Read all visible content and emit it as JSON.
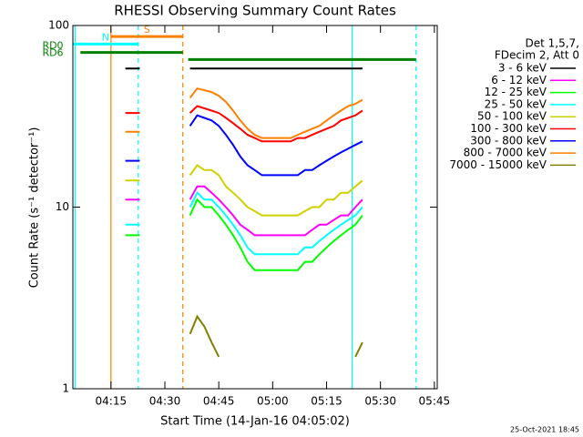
{
  "chart_data": {
    "type": "line",
    "title": "RHESSI Observing Summary Count Rates",
    "x_label": "Start Time (14-Jan-16 04:05:02)",
    "y_label": "Count Rate (s⁻¹ detector⁻¹)",
    "legend_header": [
      "Det 1,5,7,",
      "FDecim 2, Att 0"
    ],
    "footer": "25-Oct-2021 18:45",
    "log_y": true,
    "xlim": [
      4.4,
      105.8
    ],
    "xticks": [
      {
        "value": 15,
        "label": "04:15"
      },
      {
        "value": 30,
        "label": "04:30"
      },
      {
        "value": 45,
        "label": "04:45"
      },
      {
        "value": 60,
        "label": "05:00"
      },
      {
        "value": 75,
        "label": "05:15"
      },
      {
        "value": 90,
        "label": "05:30"
      },
      {
        "value": 105,
        "label": "05:45"
      }
    ],
    "ylim": [
      1,
      100
    ],
    "yticks": [
      1,
      10,
      100
    ],
    "x": [
      19,
      20,
      21,
      22,
      23,
      30,
      37,
      39,
      41,
      43,
      45,
      47,
      49,
      51,
      53,
      55,
      57,
      59,
      61,
      63,
      65,
      67,
      69,
      71,
      73,
      75,
      77,
      79,
      81,
      83,
      85
    ],
    "series": [
      {
        "name": "3 - 6 keV",
        "color": "#000000",
        "values": [
          58,
          58,
          58,
          58,
          58,
          null,
          58,
          58,
          58,
          58,
          58,
          58,
          58,
          58,
          58,
          58,
          58,
          58,
          58,
          58,
          58,
          58,
          58,
          58,
          58,
          58,
          58,
          58,
          58,
          58,
          58
        ]
      },
      {
        "name": "6 - 12 keV",
        "color": "#ff00ff",
        "values": [
          11,
          11,
          11,
          11,
          11,
          null,
          11,
          13,
          13,
          12,
          11,
          10,
          9,
          8,
          7.5,
          7,
          7,
          7,
          7,
          7,
          7,
          7,
          7,
          7.5,
          8,
          8,
          8.5,
          9,
          9,
          10,
          11
        ]
      },
      {
        "name": "12 - 25 keV",
        "color": "#00ff00",
        "values": [
          7,
          7,
          7,
          7,
          7,
          null,
          9,
          11,
          10,
          10,
          9,
          8,
          7,
          6,
          5,
          4.5,
          4.5,
          4.5,
          4.5,
          4.5,
          4.5,
          4.5,
          5,
          5,
          5.5,
          6,
          6.5,
          7,
          7.5,
          8,
          9
        ]
      },
      {
        "name": "25 - 50 keV",
        "color": "#00ffff",
        "values": [
          8,
          8,
          8,
          8,
          8,
          null,
          10,
          12,
          11,
          11,
          10,
          9,
          8,
          7,
          6,
          5.5,
          5.5,
          5.5,
          5.5,
          5.5,
          5.5,
          5.5,
          6,
          6,
          6.5,
          7,
          7.5,
          8,
          8.5,
          9,
          10
        ]
      },
      {
        "name": "50 - 100 keV",
        "color": "#d0d000",
        "values": [
          14,
          14,
          14,
          14,
          14,
          null,
          15,
          17,
          16,
          16,
          15,
          13,
          12,
          11,
          10,
          9.5,
          9,
          9,
          9,
          9,
          9,
          9,
          9.5,
          10,
          10,
          11,
          11,
          12,
          12,
          13,
          14
        ]
      },
      {
        "name": "100 - 300 keV",
        "color": "#ff0000",
        "values": [
          33,
          33,
          33,
          33,
          33,
          null,
          33,
          36,
          35,
          34,
          33,
          31,
          29,
          27,
          25,
          24,
          23,
          23,
          23,
          23,
          23,
          24,
          24,
          25,
          26,
          27,
          28,
          30,
          31,
          32,
          34
        ]
      },
      {
        "name": "300 - 800 keV",
        "color": "#0000ff",
        "values": [
          18,
          18,
          18,
          18,
          18,
          null,
          28,
          32,
          31,
          30,
          28,
          25,
          22,
          19,
          17,
          16,
          15,
          15,
          15,
          15,
          15,
          15,
          16,
          16,
          17,
          18,
          19,
          20,
          21,
          22,
          23
        ]
      },
      {
        "name": "800 - 7000 keV",
        "color": "#ff8000",
        "values": [
          26,
          26,
          26,
          26,
          26,
          null,
          40,
          45,
          44,
          43,
          41,
          38,
          34,
          30,
          27,
          25,
          24,
          24,
          24,
          24,
          24,
          25,
          26,
          27,
          28,
          30,
          32,
          34,
          36,
          37,
          39
        ]
      },
      {
        "name": "7000 - 15000 keV",
        "color": "#808000",
        "values": [
          null,
          null,
          null,
          null,
          null,
          null,
          2,
          2.5,
          2.2,
          1.8,
          1.5,
          null,
          null,
          null,
          null,
          null,
          null,
          null,
          null,
          null,
          null,
          null,
          null,
          null,
          null,
          null,
          null,
          null,
          null,
          1.5,
          1.8
        ]
      }
    ],
    "flags": [
      {
        "label": "S",
        "color": "#ff8000",
        "x": [
          15,
          35
        ],
        "y": 87
      },
      {
        "label": "N",
        "color": "#00ffff",
        "x": [
          4.4,
          22.6
        ],
        "y": 79
      },
      {
        "label": "RD0",
        "color": "#008000",
        "x": [
          6.5,
          35
        ],
        "y": 71
      },
      {
        "label": "RD6",
        "color": "#008000",
        "x": [
          36.5,
          99.9
        ],
        "y": 65
      }
    ],
    "vlines": [
      {
        "x": 5,
        "color": "#00ffff",
        "dashed": false
      },
      {
        "x": 15,
        "color": "#ff8000",
        "dashed": false
      },
      {
        "x": 22.6,
        "color": "#00ffff",
        "dashed": true
      },
      {
        "x": 35,
        "color": "#ff8000",
        "dashed": true
      },
      {
        "x": 82.1,
        "color": "#00ffff",
        "dashed": false
      },
      {
        "x": 99.9,
        "color": "#00ffff",
        "dashed": true
      }
    ]
  }
}
